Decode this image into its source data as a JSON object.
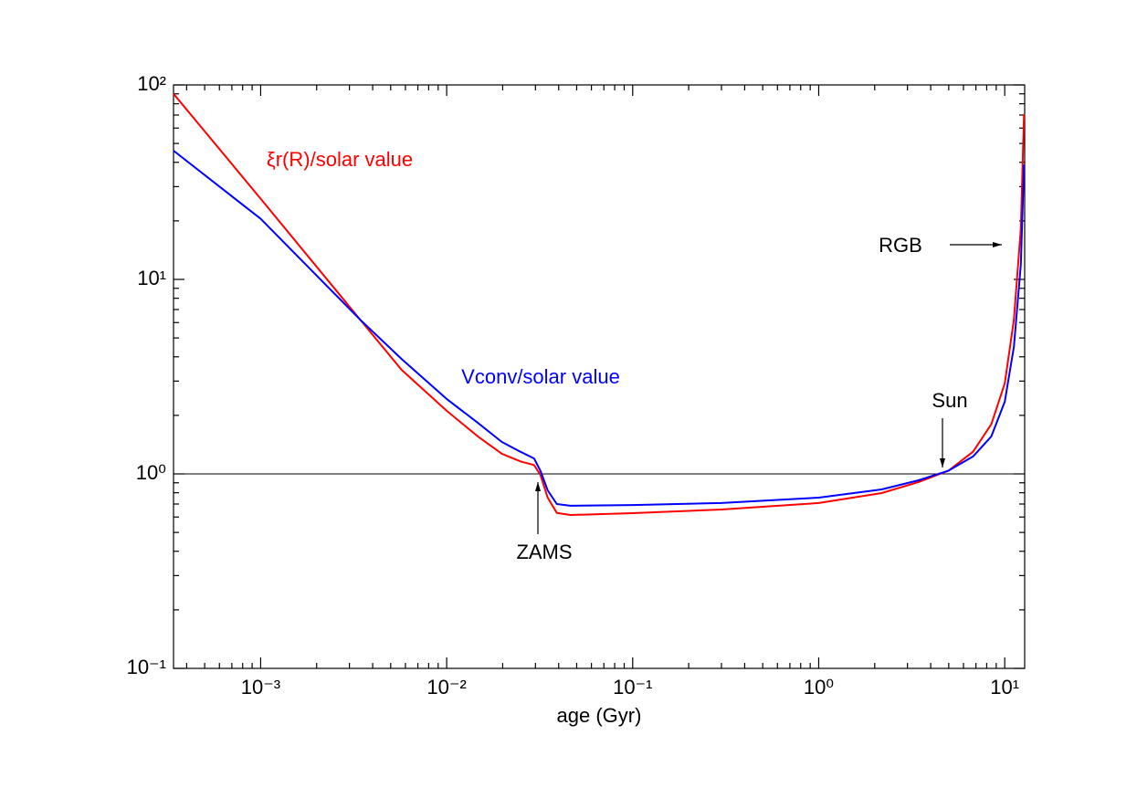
{
  "chart_data": {
    "type": "line",
    "xlabel": "age (Gyr)",
    "xscale": "log",
    "yscale": "log",
    "xlim": [
      0.00034,
      12.8
    ],
    "ylim": [
      0.1,
      100
    ],
    "xticks": [
      {
        "value": 0.001,
        "label": "10⁻³"
      },
      {
        "value": 0.01,
        "label": "10⁻²"
      },
      {
        "value": 0.1,
        "label": "10⁻¹"
      },
      {
        "value": 1,
        "label": "10⁰"
      },
      {
        "value": 10,
        "label": "10¹"
      }
    ],
    "yticks": [
      {
        "value": 0.1,
        "label": "10⁻¹"
      },
      {
        "value": 1,
        "label": "10⁰"
      },
      {
        "value": 10,
        "label": "10¹"
      },
      {
        "value": 100,
        "label": "10²"
      }
    ],
    "hline": 1,
    "x": [
      0.00034,
      0.001,
      0.00343,
      0.00572,
      0.01,
      0.0147,
      0.0198,
      0.0249,
      0.0295,
      0.0319,
      0.0349,
      0.0391,
      0.0463,
      0.1,
      0.3,
      1,
      2.18,
      3.44,
      4.99,
      6.76,
      8.47,
      10.0,
      11.2,
      12.2,
      12.7
    ],
    "series": [
      {
        "name": "ξr(R)/solar value",
        "color": "#ff0000",
        "values": [
          90,
          26,
          6.2,
          3.43,
          2.11,
          1.56,
          1.27,
          1.16,
          1.11,
          0.99,
          0.755,
          0.63,
          0.615,
          0.628,
          0.656,
          0.708,
          0.797,
          0.908,
          1.04,
          1.3,
          1.8,
          2.92,
          6.2,
          18.3,
          70.8
        ]
      },
      {
        "name": "Vconv/solar value",
        "color": "#0000ff",
        "values": [
          45.9,
          20.5,
          6.2,
          3.9,
          2.43,
          1.83,
          1.46,
          1.3,
          1.2,
          1.04,
          0.823,
          0.7,
          0.686,
          0.692,
          0.708,
          0.755,
          0.832,
          0.927,
          1.04,
          1.23,
          1.56,
          2.35,
          4.5,
          11.9,
          38.9
        ]
      }
    ],
    "annotations": [
      {
        "text": "RGB"
      },
      {
        "text": "Sun"
      },
      {
        "text": "ZAMS"
      }
    ]
  }
}
